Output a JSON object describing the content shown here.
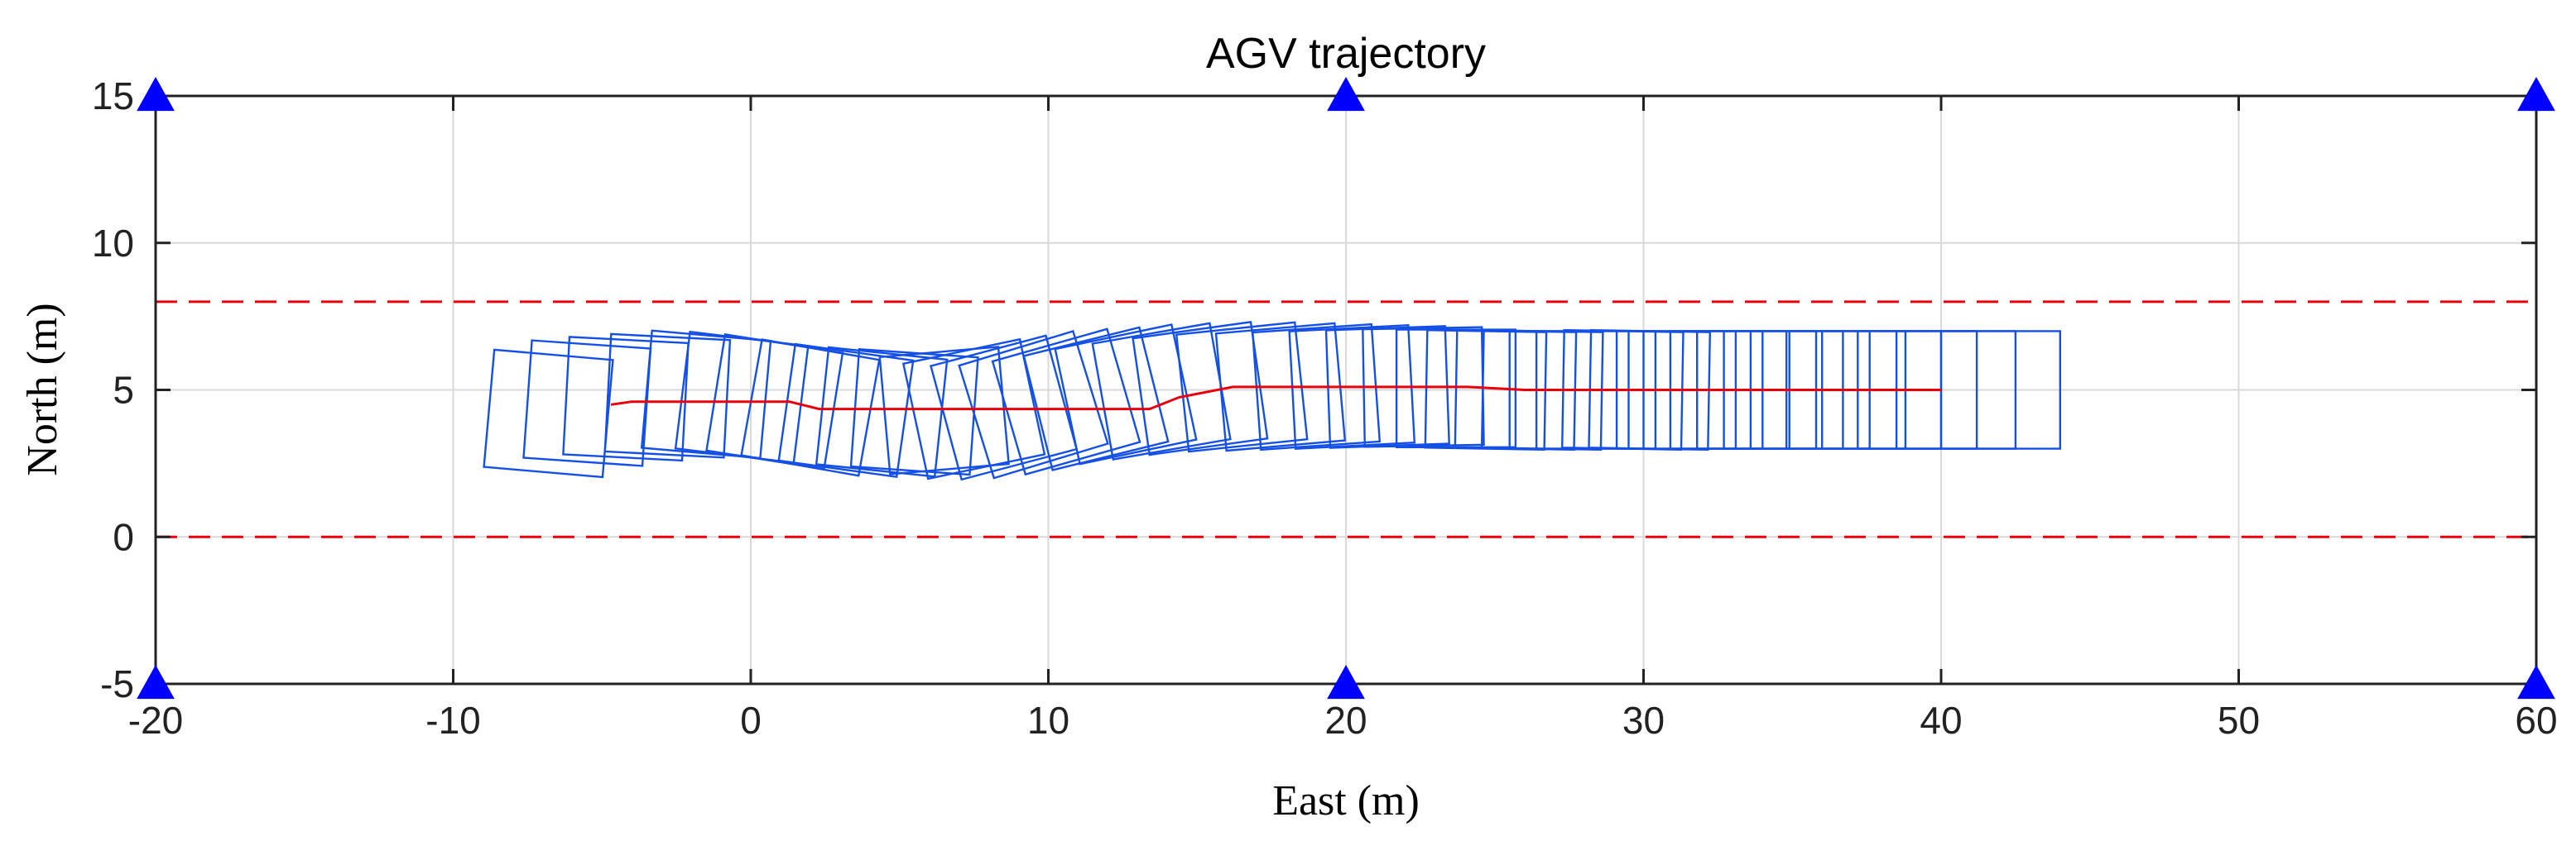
{
  "chart_data": {
    "type": "line",
    "title": "AGV trajectory",
    "xlabel": "East (m)",
    "ylabel": "North (m)",
    "xlim": [
      -20,
      60
    ],
    "ylim": [
      -5,
      15
    ],
    "grid": true,
    "xticks": [
      -20,
      -10,
      0,
      10,
      20,
      30,
      40,
      50,
      60
    ],
    "yticks": [
      -5,
      0,
      5,
      10,
      15
    ],
    "xtick_labels": [
      "-20",
      "-10",
      "0",
      "10",
      "20",
      "30",
      "40",
      "50",
      "60"
    ],
    "ytick_labels": [
      "-5",
      "0",
      "5",
      "10",
      "15"
    ],
    "colors": {
      "path": "#e8000b",
      "boundary": "#e8000b",
      "footprint": "#1450e6",
      "anchor": "#0000ff",
      "grid": "#d9d9d9",
      "axis": "#222222"
    },
    "lane_boundaries": [
      {
        "name": "upper-boundary",
        "y": 8,
        "style": "dashed"
      },
      {
        "name": "lower-boundary",
        "y": 0,
        "style": "dashed"
      }
    ],
    "anchors": [
      {
        "x": -20,
        "y": 15
      },
      {
        "x": 20,
        "y": 15
      },
      {
        "x": 60,
        "y": 15
      },
      {
        "x": -20,
        "y": -5
      },
      {
        "x": 20,
        "y": -5
      },
      {
        "x": 60,
        "y": -5
      }
    ],
    "vehicle_size": {
      "length": 4,
      "width": 4
    },
    "path": [
      {
        "x": -4.7,
        "y": 4.5
      },
      {
        "x": -4.0,
        "y": 4.6
      },
      {
        "x": 1.3,
        "y": 4.6
      },
      {
        "x": 2.3,
        "y": 4.35
      },
      {
        "x": 13.4,
        "y": 4.35
      },
      {
        "x": 14.4,
        "y": 4.75
      },
      {
        "x": 16.2,
        "y": 5.1
      },
      {
        "x": 24.1,
        "y": 5.1
      },
      {
        "x": 26.0,
        "y": 5.0
      },
      {
        "x": 40.0,
        "y": 5.0
      }
    ],
    "footprints": [
      {
        "x": -6.8,
        "y": 4.2,
        "heading": -5
      },
      {
        "x": -5.5,
        "y": 4.55,
        "heading": -4
      },
      {
        "x": -4.2,
        "y": 4.7,
        "heading": -3
      },
      {
        "x": -2.8,
        "y": 4.8,
        "heading": -3
      },
      {
        "x": -1.5,
        "y": 4.85,
        "heading": -5
      },
      {
        "x": -0.3,
        "y": 4.75,
        "heading": -7
      },
      {
        "x": 0.8,
        "y": 4.6,
        "heading": -9
      },
      {
        "x": 2.0,
        "y": 4.4,
        "heading": -10
      },
      {
        "x": 3.2,
        "y": 4.3,
        "heading": -8
      },
      {
        "x": 4.4,
        "y": 4.25,
        "heading": -6
      },
      {
        "x": 5.5,
        "y": 4.25,
        "heading": -4
      },
      {
        "x": 6.5,
        "y": 4.3,
        "heading": 5
      },
      {
        "x": 7.5,
        "y": 4.35,
        "heading": 12
      },
      {
        "x": 8.5,
        "y": 4.4,
        "heading": 15
      },
      {
        "x": 9.5,
        "y": 4.5,
        "heading": 17
      },
      {
        "x": 10.6,
        "y": 4.6,
        "heading": 16
      },
      {
        "x": 11.6,
        "y": 4.7,
        "heading": 14
      },
      {
        "x": 12.6,
        "y": 4.85,
        "heading": 12
      },
      {
        "x": 13.8,
        "y": 4.95,
        "heading": 10
      },
      {
        "x": 15.1,
        "y": 5.05,
        "heading": 8
      },
      {
        "x": 16.5,
        "y": 5.1,
        "heading": 6
      },
      {
        "x": 17.8,
        "y": 5.1,
        "heading": 5
      },
      {
        "x": 19.0,
        "y": 5.1,
        "heading": 4
      },
      {
        "x": 20.2,
        "y": 5.1,
        "heading": 3
      },
      {
        "x": 21.4,
        "y": 5.1,
        "heading": 2
      },
      {
        "x": 22.6,
        "y": 5.1,
        "heading": 1
      },
      {
        "x": 23.7,
        "y": 5.05,
        "heading": 0
      },
      {
        "x": 24.7,
        "y": 5.0,
        "heading": -1
      },
      {
        "x": 25.7,
        "y": 5.0,
        "heading": -1
      },
      {
        "x": 26.6,
        "y": 5.0,
        "heading": -1
      },
      {
        "x": 27.5,
        "y": 5.0,
        "heading": 0
      },
      {
        "x": 28.4,
        "y": 5.0,
        "heading": 0
      },
      {
        "x": 29.3,
        "y": 5.0,
        "heading": -1
      },
      {
        "x": 30.2,
        "y": 5.0,
        "heading": -1
      },
      {
        "x": 31.1,
        "y": 5.0,
        "heading": 0
      },
      {
        "x": 32.0,
        "y": 5.0,
        "heading": 0
      },
      {
        "x": 32.9,
        "y": 5.0,
        "heading": 0
      },
      {
        "x": 33.8,
        "y": 5.0,
        "heading": 0
      },
      {
        "x": 34.7,
        "y": 5.0,
        "heading": 0
      },
      {
        "x": 35.6,
        "y": 5.0,
        "heading": 0
      },
      {
        "x": 36.8,
        "y": 5.0,
        "heading": 0
      },
      {
        "x": 38.0,
        "y": 5.0,
        "heading": 0
      },
      {
        "x": 39.2,
        "y": 5.0,
        "heading": 0
      },
      {
        "x": 40.5,
        "y": 5.0,
        "heading": 0
      },
      {
        "x": 42.0,
        "y": 5.0,
        "heading": 0
      }
    ]
  }
}
